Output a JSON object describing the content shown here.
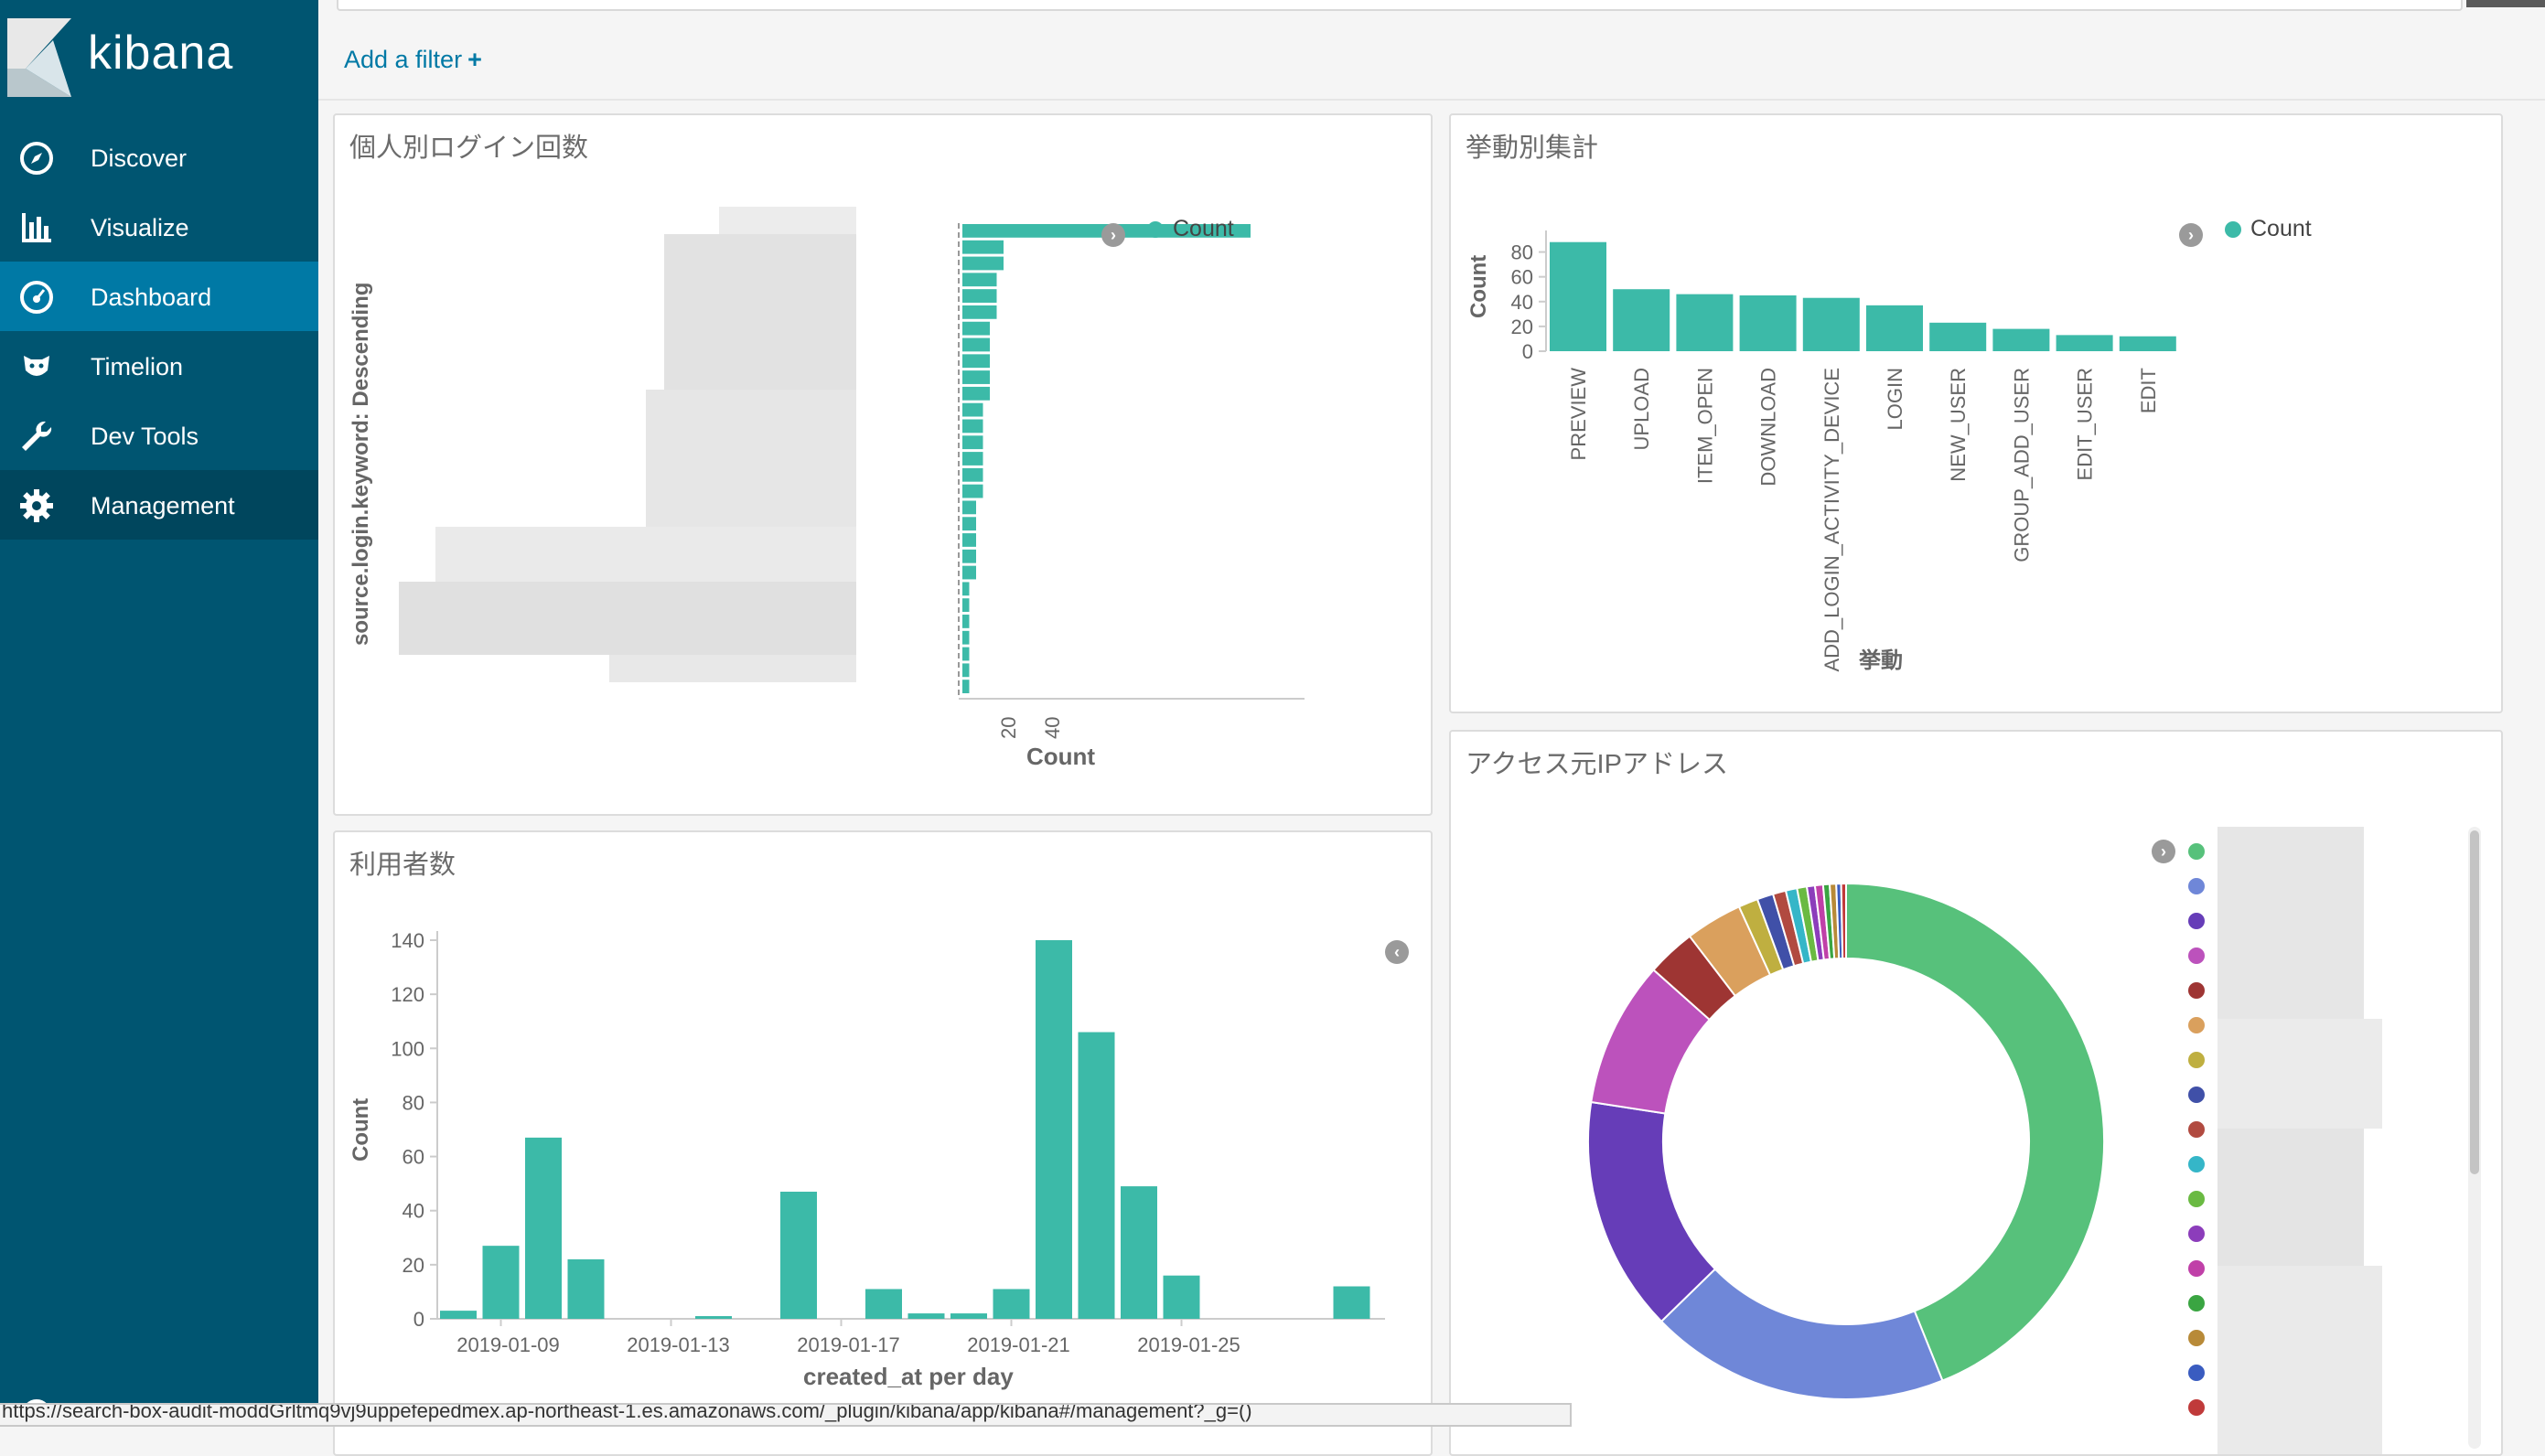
{
  "app": {
    "logo_text": "kibana"
  },
  "nav": [
    {
      "label": "Discover",
      "icon": "compass-icon",
      "state": "normal"
    },
    {
      "label": "Visualize",
      "icon": "bar-chart-icon",
      "state": "normal"
    },
    {
      "label": "Dashboard",
      "icon": "dashboard-icon",
      "state": "active"
    },
    {
      "label": "Timelion",
      "icon": "timelion-icon",
      "state": "normal"
    },
    {
      "label": "Dev Tools",
      "icon": "wrench-icon",
      "state": "normal"
    },
    {
      "label": "Management",
      "icon": "gear-icon",
      "state": "dark"
    }
  ],
  "filter": {
    "add_label": "Add a filter",
    "plus": "+"
  },
  "status_url": "https://search-box-audit-moddGrltmq9vj9uppefepedmex.ap-northeast-1.es.amazonaws.com/_plugin/kibana/app/kibana#/management?_g=()",
  "panels": {
    "logins": {
      "title": "個人別ログイン回数",
      "legend": "Count",
      "ylabel": "source.login.keyword: Descending",
      "xlabel": "Count",
      "xticks": [
        "20",
        "40"
      ]
    },
    "actions": {
      "title": "挙動別集計",
      "legend": "Count",
      "ylabel": "Count",
      "xlabel": "挙動"
    },
    "users": {
      "title": "利用者数",
      "ylabel": "Count",
      "xlabel": "created_at per day"
    },
    "ip": {
      "title": "アクセス元IPアドレス"
    }
  },
  "colors": {
    "accent": "#3cbaa8",
    "sidebar": "#005571",
    "active": "#0079a5",
    "link": "#0079a5"
  },
  "chart_data": [
    {
      "type": "bar",
      "orientation": "horizontal",
      "title": "個人別ログイン回数",
      "ylabel": "source.login.keyword: Descending",
      "xlabel": "Count",
      "series": [
        {
          "name": "Count",
          "values": [
            42,
            6,
            6,
            5,
            5,
            5,
            4,
            4,
            4,
            4,
            4,
            3,
            3,
            3,
            3,
            3,
            3,
            2,
            2,
            2,
            2,
            2,
            1,
            1,
            1,
            1,
            1,
            1,
            1
          ]
        }
      ],
      "xticks": [
        20,
        40
      ],
      "xlim": [
        0,
        44
      ],
      "category_labels_redacted": true
    },
    {
      "type": "bar",
      "title": "挙動別集計",
      "xlabel": "挙動",
      "ylabel": "Count",
      "categories": [
        "PREVIEW",
        "UPLOAD",
        "ITEM_OPEN",
        "DOWNLOAD",
        "ADD_LOGIN_ACTIVITY_DEVICE",
        "LOGIN",
        "NEW_USER",
        "GROUP_ADD_USER",
        "EDIT_USER",
        "EDIT"
      ],
      "series": [
        {
          "name": "Count",
          "values": [
            88,
            50,
            46,
            45,
            43,
            37,
            23,
            18,
            13,
            12
          ]
        }
      ],
      "yticks": [
        0,
        20,
        40,
        60,
        80
      ],
      "ylim": [
        0,
        90
      ]
    },
    {
      "type": "bar",
      "title": "利用者数",
      "xlabel": "created_at per day",
      "ylabel": "Count",
      "x": [
        "2019-01-08",
        "2019-01-09",
        "2019-01-10",
        "2019-01-11",
        "2019-01-12",
        "2019-01-13",
        "2019-01-14",
        "2019-01-15",
        "2019-01-16",
        "2019-01-17",
        "2019-01-18",
        "2019-01-19",
        "2019-01-20",
        "2019-01-21",
        "2019-01-22",
        "2019-01-23",
        "2019-01-24",
        "2019-01-25",
        "2019-01-26",
        "2019-01-27",
        "2019-01-28",
        "2019-01-29"
      ],
      "series": [
        {
          "name": "Count",
          "values": [
            3,
            27,
            67,
            22,
            0,
            0,
            1,
            0,
            47,
            0,
            11,
            2,
            2,
            11,
            140,
            106,
            49,
            16,
            0,
            0,
            0,
            12
          ]
        }
      ],
      "xticks": [
        "2019-01-09",
        "2019-01-13",
        "2019-01-17",
        "2019-01-21",
        "2019-01-25"
      ],
      "yticks": [
        0,
        20,
        40,
        60,
        80,
        100,
        120,
        140
      ],
      "ylim": [
        0,
        140
      ]
    },
    {
      "type": "pie",
      "title": "アクセス元IPアドレス",
      "donut": true,
      "labels_redacted": true,
      "values": [
        43.2,
        18.5,
        14.5,
        9.0,
        3.0,
        3.5,
        1.2,
        1.0,
        0.8,
        0.7,
        0.6,
        0.5,
        0.5,
        0.4,
        0.4,
        0.3,
        0.3
      ],
      "colors": [
        "#57c17b",
        "#6f87d8",
        "#663db8",
        "#bc52bc",
        "#9e3533",
        "#daa05d",
        "#bfaf40",
        "#4050a8",
        "#b14a40",
        "#35b6c8",
        "#6aba42",
        "#8c3dbb",
        "#c040a8",
        "#3aa542",
        "#b88a38",
        "#3a5cc0",
        "#c03a3a"
      ]
    }
  ]
}
